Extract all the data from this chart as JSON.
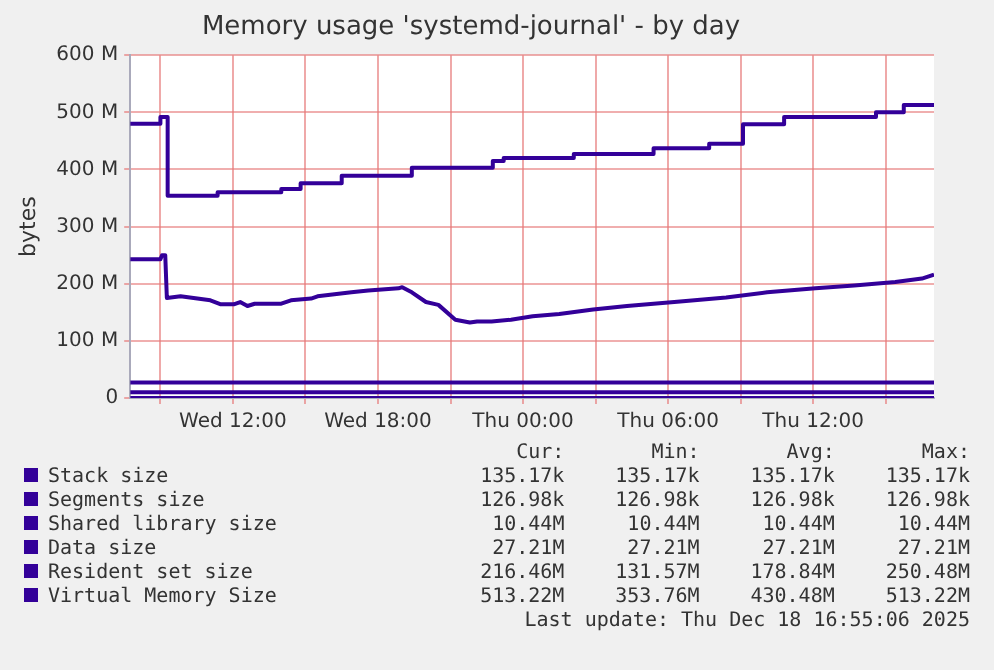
{
  "chart_data": {
    "type": "line",
    "title": "Memory usage 'systemd-journal' - by day",
    "ylabel": "bytes",
    "xlim": [
      "2025-12-17T07:45",
      "2025-12-18T17:00"
    ],
    "xticks": [
      {
        "value": "2025-12-17T09:00",
        "label": null
      },
      {
        "value": "2025-12-17T12:00",
        "label": "Wed 12:00"
      },
      {
        "value": "2025-12-17T15:00",
        "label": null
      },
      {
        "value": "2025-12-17T18:00",
        "label": "Wed 18:00"
      },
      {
        "value": "2025-12-17T21:00",
        "label": null
      },
      {
        "value": "2025-12-18T00:00",
        "label": "Thu 00:00"
      },
      {
        "value": "2025-12-18T03:00",
        "label": null
      },
      {
        "value": "2025-12-18T06:00",
        "label": "Thu 06:00"
      },
      {
        "value": "2025-12-18T09:00",
        "label": null
      },
      {
        "value": "2025-12-18T12:00",
        "label": "Thu 12:00"
      },
      {
        "value": "2025-12-18T15:00",
        "label": null
      }
    ],
    "ylim": [
      0,
      600
    ],
    "yticks": [
      0,
      {
        "value": 100,
        "label": "100 M"
      },
      {
        "value": 200,
        "label": "200 M"
      },
      {
        "value": 300,
        "label": "300 M"
      },
      {
        "value": 400,
        "label": "400 M"
      },
      {
        "value": 500,
        "label": "500 M"
      },
      {
        "value": 600,
        "label": "600 M"
      }
    ],
    "grid": true,
    "legend": "bottom",
    "marker": "none",
    "line_style": "solid",
    "series": [
      {
        "name": "Stack size",
        "color": "#330099",
        "x": [
          "2025-12-17T07:45",
          "2025-12-18T17:00"
        ],
        "values": [
          0,
          0
        ]
      },
      {
        "name": "Segments size",
        "color": "#330099"
      },
      {
        "name": "Shared library size",
        "color": "#330099",
        "x": [
          "2025-12-17T07:45",
          "2025-12-18T17:00"
        ],
        "values": [
          10,
          10
        ]
      },
      {
        "name": "Data size",
        "color": "#330099",
        "x": [
          "2025-12-17T07:45",
          "2025-12-18T17:00"
        ],
        "values": [
          27,
          27
        ]
      },
      {
        "name": "Resident set size",
        "color": "#330099",
        "x": [
          "2025-12-17T07:45",
          "2025-12-17T09:00",
          "2025-12-17T09:04",
          "2025-12-17T09:12",
          "2025-12-17T09:16",
          "2025-12-17T09:50",
          "2025-12-17T11:04",
          "2025-12-17T11:30",
          "2025-12-17T12:02",
          "2025-12-17T12:18",
          "2025-12-17T12:36",
          "2025-12-17T12:54",
          "2025-12-17T14:00",
          "2025-12-17T14:24",
          "2025-12-17T15:14",
          "2025-12-17T15:30",
          "2025-12-17T16:54",
          "2025-12-17T17:36",
          "2025-12-17T18:51",
          "2025-12-17T19:00",
          "2025-12-17T19:24",
          "2025-12-17T19:59",
          "2025-12-17T20:30",
          "2025-12-17T21:12",
          "2025-12-17T21:48",
          "2025-12-17T22:06",
          "2025-12-17T22:42",
          "2025-12-17T23:30",
          "2025-12-18T00:24",
          "2025-12-18T01:30",
          "2025-12-18T02:54",
          "2025-12-18T04:18",
          "2025-12-18T06:30",
          "2025-12-18T08:24",
          "2025-12-18T10:06",
          "2025-12-18T12:06",
          "2025-12-18T13:42",
          "2025-12-18T15:24",
          "2025-12-18T16:30",
          "2025-12-18T17:00"
        ],
        "values": [
          243,
          243,
          250,
          250,
          175,
          178,
          171,
          164,
          164,
          168,
          161,
          165,
          165,
          171,
          174,
          178,
          185,
          188,
          192,
          194,
          185,
          168,
          163,
          137,
          132,
          134,
          134,
          137,
          143,
          147,
          155,
          161,
          169,
          176,
          185,
          192,
          197,
          203,
          209,
          216
        ]
      },
      {
        "name": "Virtual Memory Size",
        "color": "#330099",
        "x": [
          "2025-12-17T07:45",
          "2025-12-17T09:00",
          "2025-12-17T09:00",
          "2025-12-17T09:18",
          "2025-12-17T09:18",
          "2025-12-17T11:22",
          "2025-12-17T11:22",
          "2025-12-17T14:00",
          "2025-12-17T14:00",
          "2025-12-17T14:48",
          "2025-12-17T14:48",
          "2025-12-17T16:30",
          "2025-12-17T16:30",
          "2025-12-17T19:24",
          "2025-12-17T19:24",
          "2025-12-17T22:45",
          "2025-12-17T22:45",
          "2025-12-17T23:12",
          "2025-12-17T23:12",
          "2025-12-18T02:06",
          "2025-12-18T02:06",
          "2025-12-18T05:24",
          "2025-12-18T05:24",
          "2025-12-18T07:42",
          "2025-12-18T07:42",
          "2025-12-18T09:06",
          "2025-12-18T09:06",
          "2025-12-18T10:48",
          "2025-12-18T10:48",
          "2025-12-18T14:36",
          "2025-12-18T14:36",
          "2025-12-18T15:45",
          "2025-12-18T15:45",
          "2025-12-18T17:00"
        ],
        "values": [
          480,
          480,
          492,
          492,
          354,
          354,
          360,
          360,
          366,
          366,
          376,
          376,
          389,
          389,
          403,
          403,
          415,
          415,
          420,
          420,
          427,
          427,
          437,
          437,
          445,
          445,
          479,
          479,
          492,
          492,
          500,
          500,
          513,
          513
        ]
      }
    ],
    "annotations": [
      "Cur:",
      "Min:",
      "Avg:",
      "Max:",
      "135.17k",
      "135.17k",
      "135.17k",
      "135.17k",
      "126.98k",
      "126.98k",
      "126.98k",
      "126.98k",
      "10.44M",
      "10.44M",
      "10.44M",
      "10.44M",
      "27.21M",
      "27.21M",
      "27.21M",
      "27.21M",
      "216.46M",
      "131.57M",
      "178.84M",
      "250.48M",
      "513.22M",
      "353.76M",
      "430.48M",
      "513.22M",
      "Last update: Thu Dec 18 16:55:06 2025"
    ]
  }
}
